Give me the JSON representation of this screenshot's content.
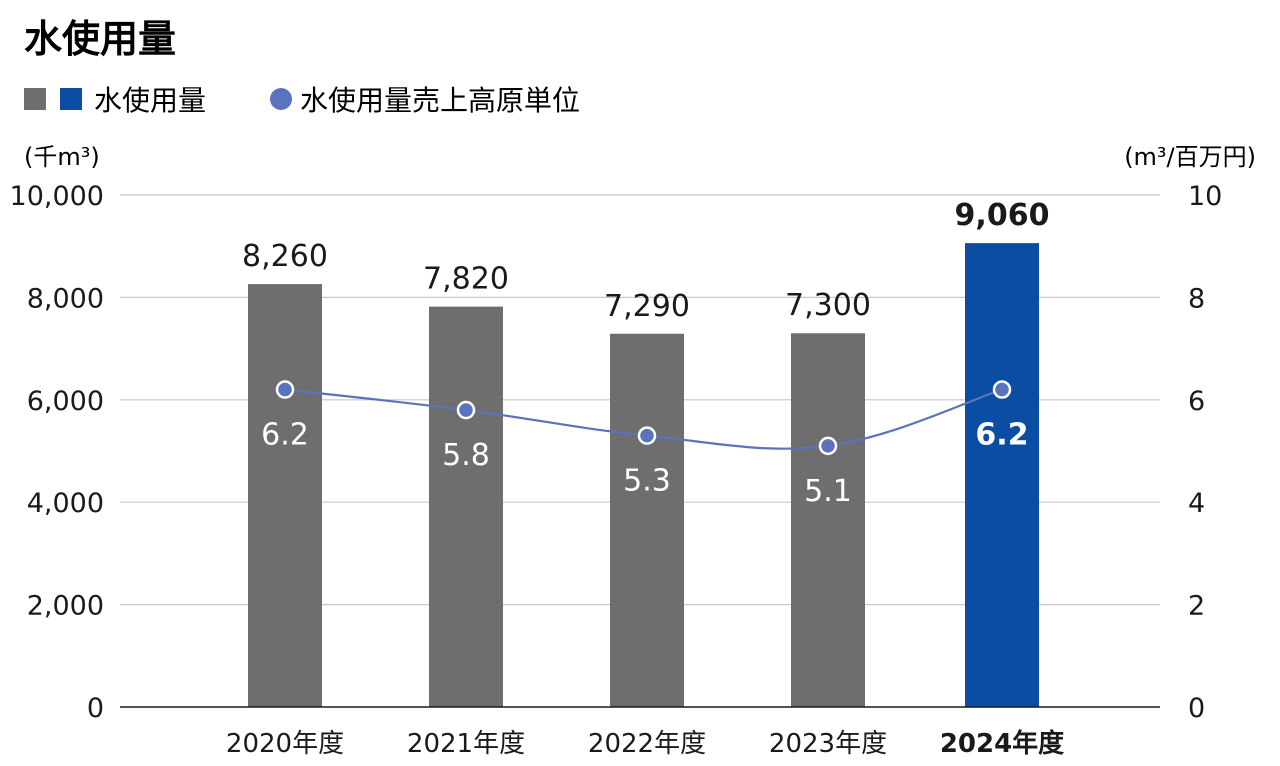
{
  "chart_data": {
    "type": "bar",
    "title": "水使用量",
    "legend": {
      "placement": "top-left",
      "bar_label": "水使用量",
      "line_label": "水使用量売上高原単位"
    },
    "categories": [
      "2020年度",
      "2021年度",
      "2022年度",
      "2023年度",
      "2024年度"
    ],
    "highlight_index": 4,
    "series": [
      {
        "name": "水使用量",
        "kind": "bar",
        "axis": "left",
        "values": [
          8260,
          7820,
          7290,
          7300,
          9060
        ],
        "labels": [
          "8,260",
          "7,820",
          "7,290",
          "7,300",
          "9,060"
        ]
      },
      {
        "name": "水使用量売上高原単位",
        "kind": "line",
        "axis": "right",
        "values": [
          6.2,
          5.8,
          5.3,
          5.1,
          6.2
        ],
        "labels": [
          "6.2",
          "5.8",
          "5.3",
          "5.1",
          "6.2"
        ]
      }
    ],
    "y_left": {
      "unit_label": "(千m³)",
      "ylim": [
        0,
        10000
      ],
      "ticks": [
        0,
        2000,
        4000,
        6000,
        8000,
        10000
      ],
      "tick_labels": [
        "0",
        "2,000",
        "4,000",
        "6,000",
        "8,000",
        "10,000"
      ]
    },
    "y_right": {
      "unit_label": "(m³/百万円)",
      "ylim": [
        0,
        10
      ],
      "ticks": [
        0,
        2,
        4,
        6,
        8,
        10
      ],
      "tick_labels": [
        "0",
        "2",
        "4",
        "6",
        "8",
        "10"
      ]
    },
    "grid": true,
    "colors": {
      "bar": "#6e6e6e",
      "bar_highlight": "#0a4da2",
      "line": "#5b73bf",
      "grid": "#c8c8c8",
      "axis": "#1a1a1a"
    }
  }
}
